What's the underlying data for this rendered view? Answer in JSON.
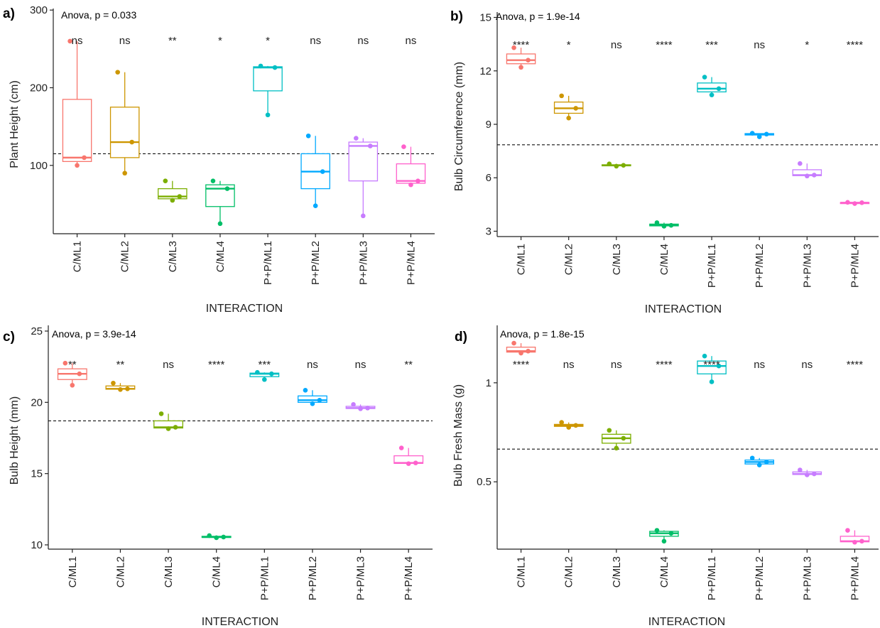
{
  "colors": {
    "C/ML1": "#F8766D",
    "C/ML2": "#CD9600",
    "C/ML3": "#7CAE00",
    "C/ML4": "#00BE67",
    "P+P/ML1": "#00BFC4",
    "P+P/ML2": "#00A9FF",
    "P+P/ML3": "#C77CFF",
    "P+P/ML4": "#FF61CC"
  },
  "chart_data": [
    {
      "type": "box",
      "panel": "a)",
      "annotation": "Anova, p = 0.033",
      "xlabel": "INTERACTION",
      "ylabel": "Plant Height (cm)",
      "ylim": [
        12,
        302
      ],
      "yticks": [
        100,
        200,
        300
      ],
      "reference_line": 115,
      "categories": [
        "C/ML1",
        "C/ML2",
        "C/ML3",
        "C/ML4",
        "P+P/ML1",
        "P+P/ML2",
        "P+P/ML3",
        "P+P/ML4"
      ],
      "significance": [
        "ns",
        "ns",
        "**",
        "*",
        "*",
        "ns",
        "ns",
        "ns"
      ],
      "boxes": [
        {
          "min": 100,
          "q1": 105,
          "median": 110,
          "q3": 185,
          "max": 260,
          "points": [
            260,
            110,
            100
          ]
        },
        {
          "min": 90,
          "q1": 110,
          "median": 130,
          "q3": 175,
          "max": 220,
          "points": [
            220,
            130,
            90
          ]
        },
        {
          "min": 55,
          "q1": 57,
          "median": 60,
          "q3": 70,
          "max": 80,
          "points": [
            80,
            60,
            55
          ]
        },
        {
          "min": 25,
          "q1": 47,
          "median": 70,
          "q3": 75,
          "max": 80,
          "points": [
            80,
            70,
            25
          ]
        },
        {
          "min": 165,
          "q1": 196,
          "median": 226,
          "q3": 227,
          "max": 228,
          "points": [
            228,
            226,
            165
          ]
        },
        {
          "min": 48,
          "q1": 70,
          "median": 92,
          "q3": 115,
          "max": 138,
          "points": [
            138,
            92,
            48
          ]
        },
        {
          "min": 35,
          "q1": 80,
          "median": 125,
          "q3": 130,
          "max": 135,
          "points": [
            135,
            125,
            35
          ]
        },
        {
          "min": 75,
          "q1": 77,
          "median": 80,
          "q3": 102,
          "max": 124,
          "points": [
            124,
            80,
            75
          ]
        }
      ]
    },
    {
      "type": "box",
      "panel": "b)",
      "annotation": "Anova, p = 1.9e-14",
      "xlabel": "INTERACTION",
      "ylabel": "Bulb Circumference (mm)",
      "ylim": [
        2.7,
        15.3
      ],
      "yticks": [
        3,
        6,
        9,
        12,
        15
      ],
      "reference_line": 7.85,
      "categories": [
        "C/ML1",
        "C/ML2",
        "C/ML3",
        "C/ML4",
        "P+P/ML1",
        "P+P/ML2",
        "P+P/ML3",
        "P+P/ML4"
      ],
      "significance": [
        "****",
        "*",
        "ns",
        "****",
        "***",
        "ns",
        "*",
        "****"
      ],
      "boxes": [
        {
          "min": 12.2,
          "q1": 12.4,
          "median": 12.6,
          "q3": 12.95,
          "max": 13.3,
          "points": [
            13.3,
            12.6,
            12.2
          ]
        },
        {
          "min": 9.35,
          "q1": 9.62,
          "median": 9.9,
          "q3": 10.25,
          "max": 10.6,
          "points": [
            10.6,
            9.9,
            9.35
          ]
        },
        {
          "min": 6.65,
          "q1": 6.68,
          "median": 6.7,
          "q3": 6.73,
          "max": 6.78,
          "points": [
            6.78,
            6.7,
            6.65
          ]
        },
        {
          "min": 3.28,
          "q1": 3.3,
          "median": 3.33,
          "q3": 3.4,
          "max": 3.48,
          "points": [
            3.48,
            3.33,
            3.28
          ]
        },
        {
          "min": 10.65,
          "q1": 10.82,
          "median": 11.0,
          "q3": 11.32,
          "max": 11.65,
          "points": [
            11.65,
            11.0,
            10.65
          ]
        },
        {
          "min": 8.3,
          "q1": 8.4,
          "median": 8.45,
          "q3": 8.48,
          "max": 8.5,
          "points": [
            8.5,
            8.45,
            8.3
          ]
        },
        {
          "min": 6.1,
          "q1": 6.12,
          "median": 6.15,
          "q3": 6.45,
          "max": 6.8,
          "points": [
            6.8,
            6.15,
            6.1
          ]
        },
        {
          "min": 4.55,
          "q1": 4.57,
          "median": 4.6,
          "q3": 4.61,
          "max": 4.62,
          "points": [
            4.62,
            4.6,
            4.55
          ]
        }
      ]
    },
    {
      "type": "box",
      "panel": "c)",
      "annotation": "Anova, p = 3.9e-14",
      "xlabel": "INTERACTION",
      "ylabel": "Bulb Height (mm)",
      "ylim": [
        9.7,
        25.4
      ],
      "yticks": [
        10,
        15,
        20,
        25
      ],
      "reference_line": 18.7,
      "categories": [
        "C/ML1",
        "C/ML2",
        "C/ML3",
        "C/ML4",
        "P+P/ML1",
        "P+P/ML2",
        "P+P/ML3",
        "P+P/ML4"
      ],
      "significance": [
        "**",
        "**",
        "ns",
        "****",
        "***",
        "ns",
        "ns",
        "**"
      ],
      "boxes": [
        {
          "min": 21.2,
          "q1": 21.6,
          "median": 22.0,
          "q3": 22.35,
          "max": 22.75,
          "points": [
            22.75,
            22.0,
            21.2
          ]
        },
        {
          "min": 20.9,
          "q1": 20.92,
          "median": 20.95,
          "q3": 21.15,
          "max": 21.35,
          "points": [
            21.35,
            20.95,
            20.9
          ]
        },
        {
          "min": 18.15,
          "q1": 18.2,
          "median": 18.25,
          "q3": 18.7,
          "max": 19.2,
          "points": [
            19.2,
            18.25,
            18.15
          ]
        },
        {
          "min": 10.5,
          "q1": 10.52,
          "median": 10.55,
          "q3": 10.6,
          "max": 10.65,
          "points": [
            10.65,
            10.55,
            10.5
          ]
        },
        {
          "min": 21.6,
          "q1": 21.8,
          "median": 22.0,
          "q3": 22.05,
          "max": 22.1,
          "points": [
            22.1,
            22.0,
            21.6
          ]
        },
        {
          "min": 19.9,
          "q1": 20.0,
          "median": 20.15,
          "q3": 20.45,
          "max": 20.85,
          "points": [
            20.85,
            20.15,
            19.9
          ]
        },
        {
          "min": 19.55,
          "q1": 19.57,
          "median": 19.6,
          "q3": 19.72,
          "max": 19.85,
          "points": [
            19.85,
            19.6,
            19.55
          ]
        },
        {
          "min": 15.7,
          "q1": 15.72,
          "median": 15.75,
          "q3": 16.25,
          "max": 16.8,
          "points": [
            16.8,
            15.75,
            15.7
          ]
        }
      ]
    },
    {
      "type": "box",
      "panel": "d)",
      "annotation": "Anova, p = 1.8e-15",
      "xlabel": "INTERACTION",
      "ylabel": "Bulb Fresh Mass (g)",
      "ylim": [
        0.16,
        1.29
      ],
      "yticks": [
        0.5,
        1.0
      ],
      "reference_line": 0.665,
      "categories": [
        "C/ML1",
        "C/ML2",
        "C/ML3",
        "C/ML4",
        "P+P/ML1",
        "P+P/ML2",
        "P+P/ML3",
        "P+P/ML4"
      ],
      "significance": [
        "****",
        "ns",
        "ns",
        "****",
        "****",
        "ns",
        "ns",
        "****"
      ],
      "boxes": [
        {
          "min": 1.15,
          "q1": 1.155,
          "median": 1.16,
          "q3": 1.18,
          "max": 1.2,
          "points": [
            1.2,
            1.16,
            1.15
          ]
        },
        {
          "min": 0.775,
          "q1": 0.78,
          "median": 0.785,
          "q3": 0.79,
          "max": 0.8,
          "points": [
            0.8,
            0.785,
            0.775
          ]
        },
        {
          "min": 0.67,
          "q1": 0.695,
          "median": 0.72,
          "q3": 0.74,
          "max": 0.76,
          "points": [
            0.76,
            0.72,
            0.67
          ]
        },
        {
          "min": 0.2,
          "q1": 0.225,
          "median": 0.24,
          "q3": 0.25,
          "max": 0.255,
          "points": [
            0.255,
            0.24,
            0.2
          ]
        },
        {
          "min": 1.005,
          "q1": 1.045,
          "median": 1.085,
          "q3": 1.11,
          "max": 1.135,
          "points": [
            1.135,
            1.085,
            1.005
          ]
        },
        {
          "min": 0.585,
          "q1": 0.59,
          "median": 0.6,
          "q3": 0.61,
          "max": 0.62,
          "points": [
            0.62,
            0.6,
            0.585
          ]
        },
        {
          "min": 0.535,
          "q1": 0.537,
          "median": 0.54,
          "q3": 0.55,
          "max": 0.56,
          "points": [
            0.56,
            0.54,
            0.535
          ]
        },
        {
          "min": 0.195,
          "q1": 0.197,
          "median": 0.2,
          "q3": 0.225,
          "max": 0.255,
          "points": [
            0.255,
            0.2,
            0.195
          ]
        }
      ]
    }
  ]
}
